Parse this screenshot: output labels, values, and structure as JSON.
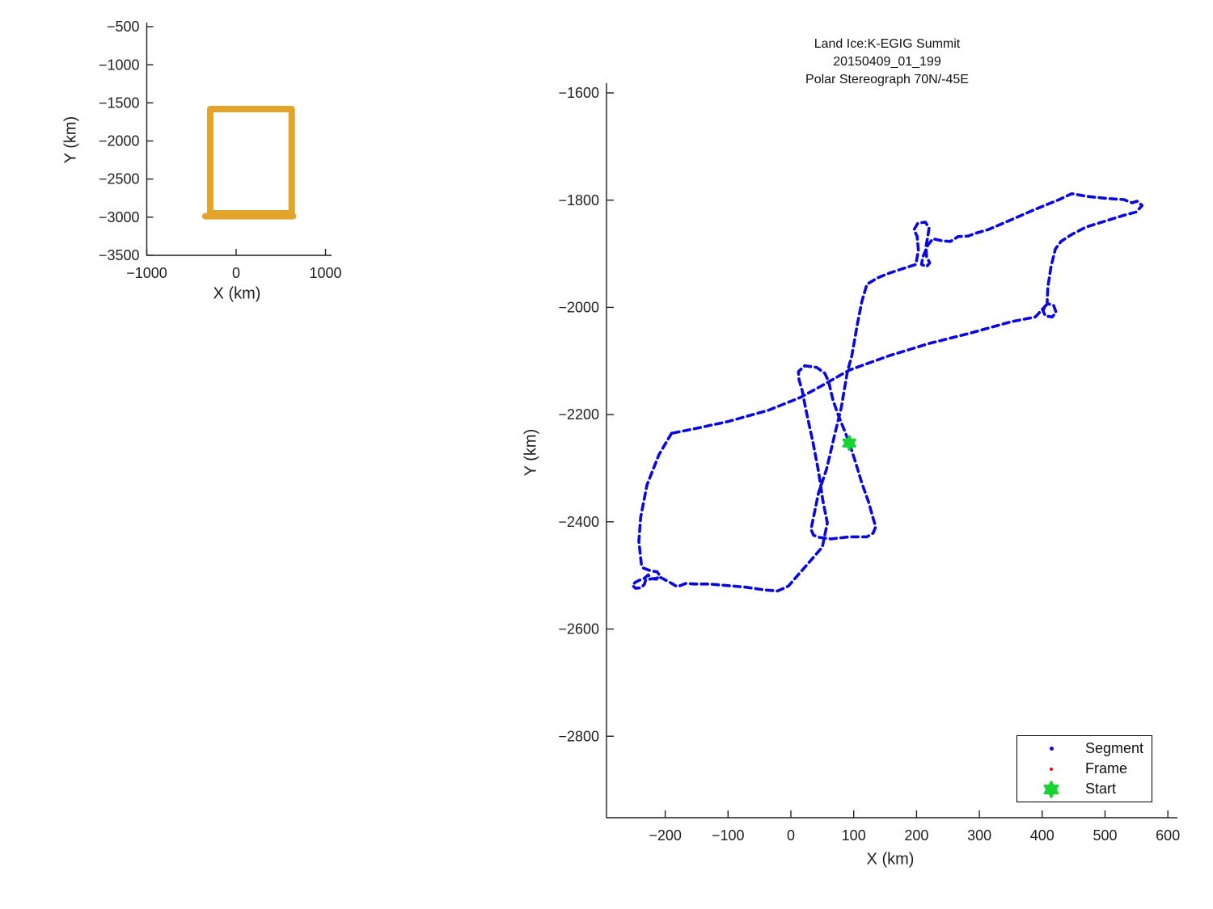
{
  "chart_data": [
    {
      "id": "overview",
      "type": "line",
      "title": "",
      "xlabel": "X (km)",
      "ylabel": "Y (km)",
      "xlim": [
        -1020,
        1070
      ],
      "ylim": [
        -3500,
        -450
      ],
      "grid": false,
      "x_ticks": [
        -1000,
        0,
        1000
      ],
      "x_tick_labels": [
        "−1000",
        "0",
        "1000"
      ],
      "y_ticks": [
        -500,
        -1000,
        -1500,
        -2000,
        -2500,
        -3000,
        -3500
      ],
      "y_tick_labels": [
        "−500",
        "−1000",
        "−1500",
        "−2000",
        "−2500",
        "−3000",
        "−3500"
      ],
      "series": [
        {
          "name": "coverage-outline",
          "color": "#e3a42c",
          "width": 8,
          "dash": "",
          "points": [
            [
              -290,
              -1582
            ],
            [
              622,
              -1582
            ],
            [
              622,
              -2950
            ],
            [
              -290,
              -2950
            ],
            [
              -290,
              -1582
            ]
          ]
        },
        {
          "name": "coverage-bottom-pass",
          "color": "#e3a42c",
          "width": 8,
          "dash": "",
          "points": [
            [
              -345,
              -2988
            ],
            [
              638,
              -2988
            ]
          ]
        }
      ]
    },
    {
      "id": "main",
      "type": "line",
      "title_lines": [
        "Land Ice:K-EGIG Summit",
        "20150409_01_199",
        "Polar Stereograph 70N/-45E"
      ],
      "xlabel": "X (km)",
      "ylabel": "Y (km)",
      "xlim": [
        -295,
        615
      ],
      "ylim": [
        -2955,
        -1585
      ],
      "grid": false,
      "x_ticks": [
        -200,
        -100,
        0,
        100,
        200,
        300,
        400,
        500,
        600
      ],
      "x_tick_labels": [
        "−200",
        "−100",
        "0",
        "100",
        "200",
        "300",
        "400",
        "500",
        "600"
      ],
      "y_ticks": [
        -1600,
        -1800,
        -2000,
        -2200,
        -2400,
        -2600,
        -2800
      ],
      "y_tick_labels": [
        "−1600",
        "−1800",
        "−2000",
        "−2200",
        "−2400",
        "−2600",
        "−2800"
      ],
      "series": [
        {
          "name": "segment-path",
          "color": "#0909dd",
          "width": 3.6,
          "dash": "8 5.5",
          "points": [
            [
              -190,
              -2235
            ],
            [
              -210,
              -2275
            ],
            [
              -229,
              -2331
            ],
            [
              -239,
              -2391
            ],
            [
              -242,
              -2436
            ],
            [
              -238,
              -2479
            ],
            [
              -235,
              -2486
            ],
            [
              -222,
              -2492
            ],
            [
              -213,
              -2493
            ],
            [
              -209,
              -2500
            ],
            [
              -214,
              -2507
            ],
            [
              -223,
              -2506
            ],
            [
              -227,
              -2499
            ],
            [
              -233,
              -2505
            ],
            [
              -241,
              -2509
            ],
            [
              -248,
              -2513
            ],
            [
              -252,
              -2519
            ],
            [
              -247,
              -2524
            ],
            [
              -238,
              -2523
            ],
            [
              -233,
              -2516
            ],
            [
              -231,
              -2508
            ],
            [
              -207,
              -2504
            ],
            [
              -194,
              -2512
            ],
            [
              -181,
              -2521
            ],
            [
              -167,
              -2515
            ],
            [
              -152,
              -2516
            ],
            [
              -130,
              -2516
            ],
            [
              -100,
              -2519
            ],
            [
              -72,
              -2522
            ],
            [
              -42,
              -2527
            ],
            [
              -21,
              -2529
            ],
            [
              -4,
              -2520
            ],
            [
              13,
              -2497
            ],
            [
              28,
              -2477
            ],
            [
              50,
              -2447
            ],
            [
              58,
              -2402
            ],
            [
              51,
              -2361
            ],
            [
              44,
              -2306
            ],
            [
              35,
              -2251
            ],
            [
              24,
              -2191
            ],
            [
              18,
              -2155
            ],
            [
              13,
              -2135
            ],
            [
              12,
              -2120
            ],
            [
              22,
              -2109
            ],
            [
              41,
              -2112
            ],
            [
              54,
              -2123
            ],
            [
              60,
              -2138
            ],
            [
              67,
              -2173
            ],
            [
              76,
              -2203
            ],
            [
              84,
              -2226
            ],
            [
              93,
              -2253
            ],
            [
              103,
              -2289
            ],
            [
              113,
              -2328
            ],
            [
              124,
              -2364
            ],
            [
              131,
              -2394
            ],
            [
              135,
              -2409
            ],
            [
              131,
              -2421
            ],
            [
              121,
              -2428
            ],
            [
              93,
              -2428
            ],
            [
              64,
              -2432
            ],
            [
              45,
              -2429
            ],
            [
              36,
              -2425
            ],
            [
              32,
              -2414
            ],
            [
              44,
              -2346
            ],
            [
              57,
              -2301
            ],
            [
              69,
              -2241
            ],
            [
              80,
              -2188
            ],
            [
              90,
              -2120
            ],
            [
              97,
              -2090
            ],
            [
              106,
              -2030
            ],
            [
              113,
              -1989
            ],
            [
              121,
              -1957
            ],
            [
              138,
              -1945
            ],
            [
              157,
              -1936
            ],
            [
              180,
              -1927
            ],
            [
              199,
              -1920
            ],
            [
              201,
              -1906
            ],
            [
              203,
              -1894
            ],
            [
              201,
              -1868
            ],
            [
              196,
              -1855
            ],
            [
              202,
              -1843
            ],
            [
              214,
              -1841
            ],
            [
              220,
              -1852
            ],
            [
              218,
              -1867
            ],
            [
              215,
              -1886
            ],
            [
              216,
              -1905
            ],
            [
              221,
              -1917
            ],
            [
              216,
              -1924
            ],
            [
              208,
              -1920
            ],
            [
              210,
              -1906
            ],
            [
              218,
              -1884
            ],
            [
              226,
              -1872
            ],
            [
              241,
              -1876
            ],
            [
              254,
              -1877
            ],
            [
              266,
              -1868
            ],
            [
              282,
              -1867
            ],
            [
              296,
              -1861
            ],
            [
              314,
              -1855
            ],
            [
              350,
              -1837
            ],
            [
              389,
              -1817
            ],
            [
              427,
              -1799
            ],
            [
              447,
              -1788
            ],
            [
              472,
              -1793
            ],
            [
              504,
              -1797
            ],
            [
              530,
              -1799
            ],
            [
              543,
              -1805
            ],
            [
              551,
              -1802
            ],
            [
              559,
              -1810
            ],
            [
              550,
              -1822
            ],
            [
              528,
              -1829
            ],
            [
              498,
              -1840
            ],
            [
              470,
              -1850
            ],
            [
              447,
              -1864
            ],
            [
              430,
              -1877
            ],
            [
              421,
              -1891
            ],
            [
              414,
              -1924
            ],
            [
              409,
              -1962
            ],
            [
              408,
              -1987
            ],
            [
              408,
              -1993
            ],
            [
              418,
              -1996
            ],
            [
              422,
              -2009
            ],
            [
              416,
              -2018
            ],
            [
              405,
              -2016
            ],
            [
              401,
              -2006
            ],
            [
              407,
              -1995
            ],
            [
              389,
              -2018
            ],
            [
              350,
              -2027
            ],
            [
              286,
              -2048
            ],
            [
              221,
              -2067
            ],
            [
              157,
              -2090
            ],
            [
              93,
              -2117
            ],
            [
              48,
              -2147
            ],
            [
              15,
              -2168
            ],
            [
              -36,
              -2192
            ],
            [
              -100,
              -2213
            ],
            [
              -152,
              -2226
            ],
            [
              -190,
              -2235
            ]
          ]
        }
      ],
      "start": {
        "x": 93,
        "y": -2253,
        "color": "#17d430"
      },
      "legend": {
        "items": [
          {
            "label": "Segment",
            "marker": "dot",
            "color": "#0909dd",
            "size": 5
          },
          {
            "label": "Frame",
            "marker": "dot",
            "color": "#e01010",
            "size": 4
          },
          {
            "label": "Start",
            "marker": "hexagram",
            "color": "#17d430",
            "size": 19
          }
        ]
      }
    }
  ]
}
